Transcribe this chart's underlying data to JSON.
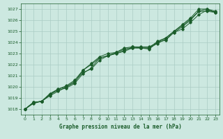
{
  "xlabel": "Graphe pression niveau de la mer (hPa)",
  "ylim": [
    1017.5,
    1027.5
  ],
  "xlim": [
    -0.5,
    23.5
  ],
  "yticks": [
    1018,
    1019,
    1020,
    1021,
    1022,
    1023,
    1024,
    1025,
    1026,
    1027
  ],
  "xticks": [
    0,
    1,
    2,
    3,
    4,
    5,
    6,
    7,
    8,
    9,
    10,
    11,
    12,
    13,
    14,
    15,
    16,
    17,
    18,
    19,
    20,
    21,
    22,
    23
  ],
  "bg_color": "#cce8e0",
  "grid_color": "#aaccc4",
  "line_color": "#1a5c2a",
  "line1": [
    1018.0,
    1018.6,
    1018.7,
    1019.4,
    1019.8,
    1020.0,
    1020.5,
    1021.3,
    1021.6,
    1022.4,
    1022.8,
    1023.0,
    1023.2,
    1023.5,
    1023.5,
    1023.5,
    1024.1,
    1024.4,
    1025.0,
    1025.6,
    1026.2,
    1027.0,
    1027.0,
    1026.8
  ],
  "line2": [
    1018.0,
    1018.6,
    1018.7,
    1019.3,
    1019.7,
    1019.9,
    1020.3,
    1021.2,
    1021.7,
    1022.6,
    1022.8,
    1023.0,
    1023.3,
    1023.6,
    1023.5,
    1023.4,
    1024.0,
    1024.2,
    1024.9,
    1025.4,
    1026.0,
    1026.8,
    1026.8,
    1026.7
  ],
  "line3": [
    1018.0,
    1018.5,
    1018.7,
    1019.3,
    1019.8,
    1020.1,
    1020.6,
    1021.5,
    1022.1,
    1022.7,
    1023.0,
    1023.1,
    1023.5,
    1023.6,
    1023.6,
    1023.6,
    1024.0,
    1024.4,
    1025.0,
    1025.5,
    1026.1,
    1026.8,
    1027.0,
    1026.7
  ],
  "line4": [
    1018.0,
    1018.6,
    1018.7,
    1019.2,
    1019.6,
    1020.0,
    1020.4,
    1021.5,
    1022.0,
    1022.6,
    1022.8,
    1023.1,
    1023.4,
    1023.5,
    1023.5,
    1023.5,
    1023.9,
    1024.3,
    1024.9,
    1025.2,
    1025.8,
    1026.5,
    1026.9,
    1026.7
  ]
}
